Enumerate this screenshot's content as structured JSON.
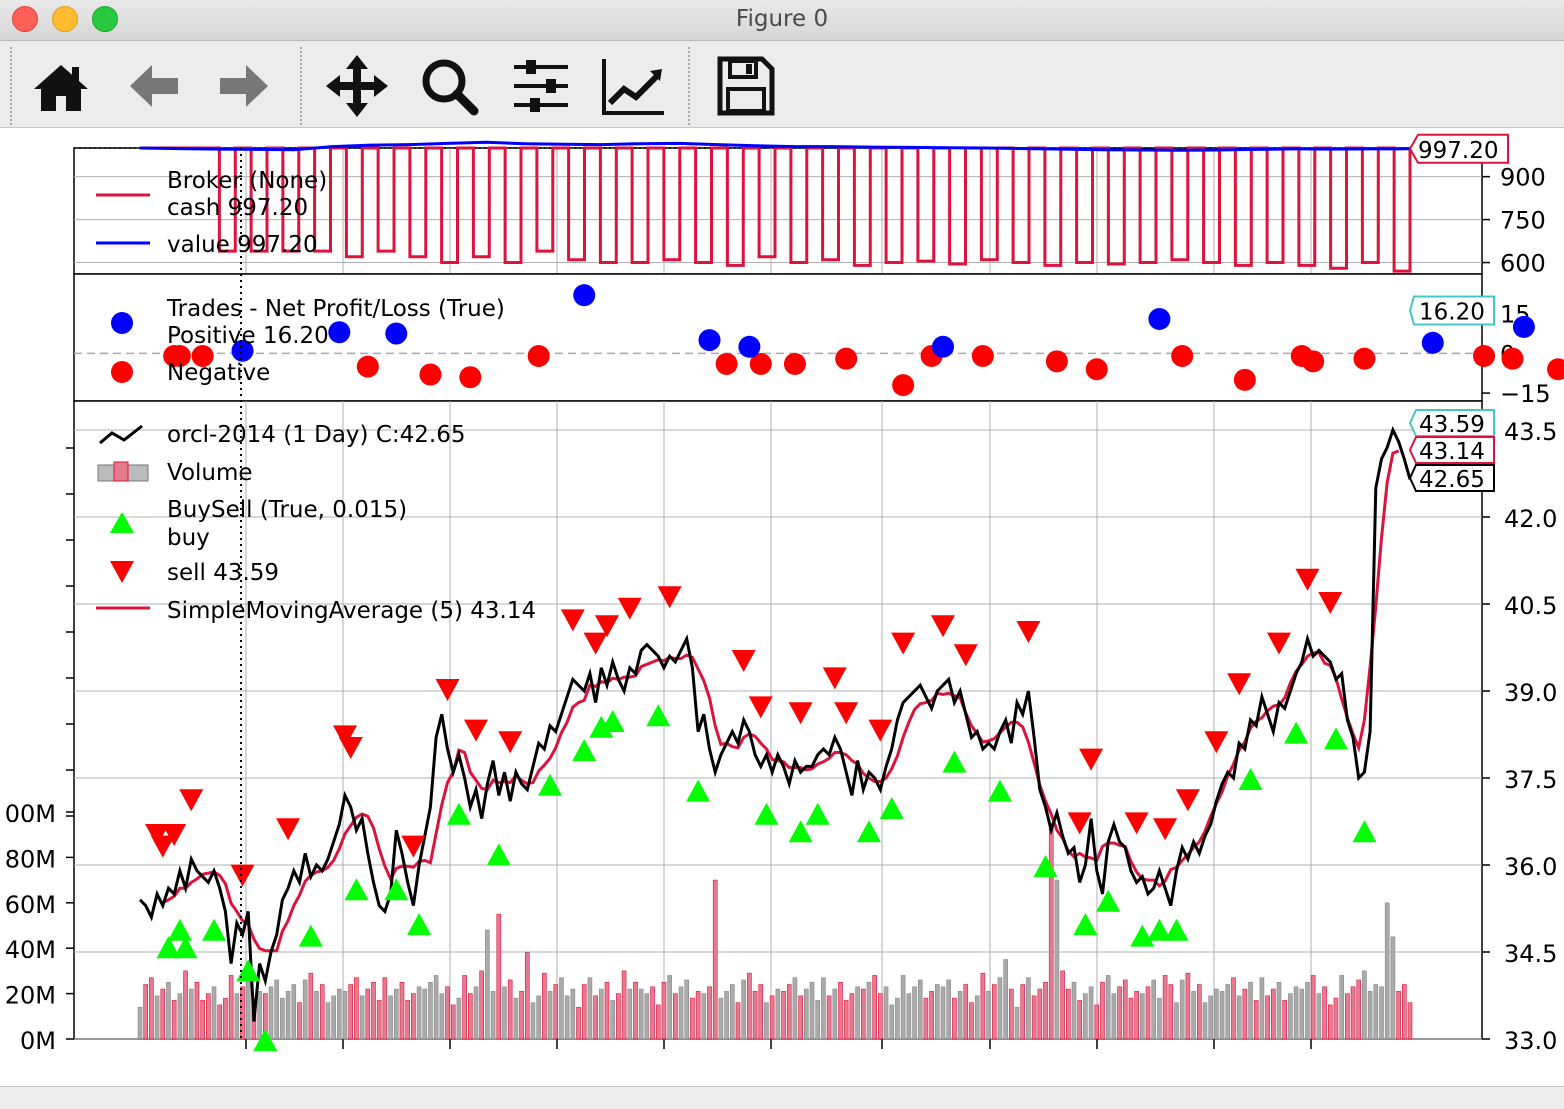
{
  "window": {
    "title": "Figure 0"
  },
  "toolbar": {
    "buttons": [
      {
        "name": "home-button",
        "icon": "home-icon",
        "enabled": true
      },
      {
        "name": "back-button",
        "icon": "arrow-left-icon",
        "enabled": false
      },
      {
        "name": "forward-button",
        "icon": "arrow-right-icon",
        "enabled": false
      },
      {
        "name": "pan-button",
        "icon": "move-icon",
        "enabled": true
      },
      {
        "name": "zoom-button",
        "icon": "magnifier-icon",
        "enabled": true
      },
      {
        "name": "subplots-button",
        "icon": "sliders-icon",
        "enabled": true
      },
      {
        "name": "axes-edit-button",
        "icon": "line-chart-icon",
        "enabled": true
      },
      {
        "name": "save-button",
        "icon": "floppy-disk-icon",
        "enabled": true
      }
    ]
  },
  "colors": {
    "cash": "#dc143c",
    "value": "#0000ff",
    "positive": "#0000ff",
    "negative": "#ff0000",
    "price": "#000000",
    "sma": "#dc143c",
    "buy": "#00ff00",
    "sell": "#ff0000",
    "volume_up": "#aaaaaa",
    "volume_down": "#dc143c"
  },
  "chart_data": [
    {
      "type": "line",
      "panel": "broker",
      "ylim": [
        560,
        1000
      ],
      "yticks": [
        "900",
        "750",
        "600"
      ],
      "ytick_values": [
        900,
        750,
        600
      ],
      "tag_label": "997.20",
      "legend": {
        "title": "Broker (None)",
        "items": [
          "cash 997.20",
          "value 997.20"
        ]
      },
      "series": [
        {
          "name": "cash",
          "description": "oscillates between ~1000 and ~600 with each trade",
          "values": [
            1000,
            1000,
            1000,
            1000,
            1000,
            640,
            1000,
            640,
            1000,
            640,
            1000,
            640,
            1000,
            620,
            1000,
            640,
            1000,
            620,
            1000,
            600,
            1000,
            620,
            1000,
            600,
            1000,
            640,
            1000,
            610,
            1000,
            600,
            1000,
            600,
            1000,
            610,
            1000,
            600,
            1000,
            590,
            1000,
            620,
            1000,
            600,
            1000,
            610,
            1000,
            590,
            1000,
            600,
            1000,
            605,
            1000,
            595,
            1000,
            610,
            1000,
            600,
            1000,
            590,
            1000,
            600,
            1000,
            595,
            1000,
            600,
            1000,
            610,
            1000,
            600,
            1000,
            590,
            1000,
            600,
            1000,
            590,
            1000,
            580,
            1000,
            600,
            1000,
            570,
            997.2
          ]
        },
        {
          "name": "value",
          "description": "flat around 990-1010",
          "values": [
            1000,
            998,
            996,
            995,
            994,
            1005,
            1010,
            1012,
            1016,
            1020,
            1015,
            1013,
            1012,
            1015,
            1016,
            1012,
            1008,
            1005,
            1005,
            1003,
            1002,
            1001,
            1000,
            998,
            996,
            994,
            993,
            992,
            993,
            995,
            997,
            996,
            997,
            997.2
          ]
        }
      ]
    },
    {
      "type": "scatter",
      "panel": "trades",
      "ylim": [
        -18,
        30
      ],
      "yticks": [
        "15",
        "0",
        "−15"
      ],
      "ytick_values": [
        15,
        0,
        -15
      ],
      "tag_label": "16.20",
      "legend": {
        "title": "Trades - Net Profit/Loss (True)",
        "items": [
          "Positive 16.20",
          "Negative"
        ]
      },
      "positive": [
        [
          18,
          1
        ],
        [
          35,
          8
        ],
        [
          45,
          7.5
        ],
        [
          78,
          22
        ],
        [
          100,
          5
        ],
        [
          107,
          2.5
        ],
        [
          141,
          2.5
        ],
        [
          179,
          13
        ],
        [
          227,
          4
        ],
        [
          243,
          10
        ],
        [
          253,
          11
        ],
        [
          269,
          1.5
        ],
        [
          283,
          1.5
        ],
        [
          290,
          16.2
        ]
      ],
      "negative": [
        [
          6,
          -1
        ],
        [
          7,
          -1
        ],
        [
          11,
          -1
        ],
        [
          40,
          -5
        ],
        [
          51,
          -8
        ],
        [
          58,
          -9
        ],
        [
          70,
          -1
        ],
        [
          103,
          -4
        ],
        [
          109,
          -4
        ],
        [
          115,
          -4
        ],
        [
          124,
          -2
        ],
        [
          139,
          -1
        ],
        [
          148,
          -1
        ],
        [
          161,
          -3
        ],
        [
          168,
          -6
        ],
        [
          183,
          -1
        ],
        [
          194,
          -10
        ],
        [
          204,
          -1
        ],
        [
          206,
          -3
        ],
        [
          215,
          -2
        ],
        [
          236,
          -1
        ],
        [
          241,
          -2
        ],
        [
          249,
          -6
        ],
        [
          134,
          -12
        ]
      ]
    },
    {
      "type": "line",
      "panel": "price",
      "ylim": [
        33.0,
        44.0
      ],
      "yticks": [
        "43.5",
        "42.0",
        "40.5",
        "39.0",
        "37.5",
        "36.0",
        "34.5",
        "33.0"
      ],
      "ytick_values": [
        43.5,
        42.0,
        40.5,
        39.0,
        37.5,
        36.0,
        34.5,
        33.0
      ],
      "volume_ticks": [
        "00M",
        "80M",
        "60M",
        "40M",
        "20M",
        "0M"
      ],
      "volume_tick_values": [
        100,
        80,
        60,
        40,
        20,
        0
      ],
      "volume_max": 380,
      "tag_labels": [
        "43.59",
        "43.14",
        "42.65"
      ],
      "legend": {
        "items": [
          "orcl-2014 (1 Day) C:42.65",
          "Volume",
          "BuySell (True, 0.015)",
          "buy",
          "sell 43.59",
          "SimpleMovingAverage (5) 43.14"
        ]
      },
      "close": [
        35.4,
        35.3,
        35.1,
        35.5,
        35.3,
        35.6,
        35.5,
        35.9,
        35.6,
        36.1,
        35.9,
        35.8,
        35.7,
        35.9,
        35.6,
        35.2,
        34.3,
        35.0,
        34.8,
        35.2,
        33.3,
        34.3,
        34.0,
        34.5,
        34.8,
        35.4,
        35.6,
        35.9,
        35.7,
        36.2,
        35.8,
        36.0,
        35.9,
        36.1,
        36.4,
        36.7,
        37.2,
        37.0,
        36.6,
        36.8,
        36.2,
        35.7,
        35.3,
        35.2,
        35.5,
        36.6,
        36.2,
        35.7,
        35.3,
        36.0,
        36.5,
        37.0,
        38.2,
        38.6,
        38.0,
        37.6,
        37.9,
        37.5,
        37.0,
        37.3,
        36.8,
        37.4,
        37.8,
        37.2,
        37.6,
        37.1,
        37.6,
        37.4,
        37.3,
        37.7,
        38.1,
        38.0,
        38.4,
        38.3,
        38.6,
        38.9,
        39.2,
        39.1,
        39.0,
        39.3,
        38.8,
        39.4,
        39.1,
        39.5,
        39.2,
        39.0,
        39.4,
        39.3,
        39.7,
        39.8,
        39.7,
        39.6,
        39.4,
        39.6,
        39.5,
        39.7,
        39.9,
        39.4,
        38.3,
        38.6,
        38.0,
        37.6,
        37.9,
        38.1,
        38.3,
        38.1,
        38.5,
        38.3,
        37.9,
        37.7,
        37.9,
        37.6,
        37.9,
        37.7,
        37.4,
        37.8,
        37.6,
        37.7,
        37.7,
        37.9,
        38.0,
        37.9,
        38.2,
        38.0,
        37.6,
        37.2,
        37.8,
        37.3,
        37.6,
        37.5,
        37.3,
        37.7,
        38.0,
        38.5,
        38.8,
        38.9,
        39.0,
        39.1,
        38.9,
        38.7,
        39.0,
        39.1,
        39.2,
        38.8,
        39.0,
        38.6,
        38.2,
        38.3,
        38.0,
        38.1,
        38.0,
        38.3,
        38.5,
        38.1,
        38.8,
        38.6,
        39.0,
        38.2,
        37.3,
        37.0,
        36.6,
        36.9,
        36.5,
        36.2,
        36.3,
        35.7,
        36.0,
        36.8,
        35.9,
        35.5,
        36.4,
        36.7,
        36.4,
        36.3,
        35.9,
        35.7,
        35.8,
        35.5,
        35.6,
        35.9,
        35.6,
        35.3,
        35.9,
        36.3,
        36.1,
        36.4,
        36.2,
        36.5,
        36.7,
        37.1,
        37.4,
        37.6,
        37.5,
        38.1,
        38.0,
        38.5,
        38.4,
        38.9,
        38.6,
        38.3,
        38.8,
        38.7,
        39.0,
        39.3,
        39.5,
        39.9,
        39.6,
        39.7,
        39.6,
        39.5,
        39.2,
        39.3,
        38.5,
        38.2,
        37.5,
        37.6,
        38.3,
        42.5,
        43.0,
        43.2,
        43.5,
        43.3,
        43.0,
        42.65
      ],
      "sma": [
        null,
        null,
        null,
        null,
        35.35,
        35.4,
        35.46,
        35.6,
        35.6,
        35.7,
        35.76,
        35.84,
        35.86,
        35.88,
        35.82,
        35.68,
        35.34,
        35.2,
        35.04,
        34.98,
        34.72,
        34.56,
        34.52,
        34.52,
        34.52,
        34.86,
        35.04,
        35.3,
        35.48,
        35.72,
        35.82,
        35.88,
        35.9,
        35.96,
        36.08,
        36.28,
        36.54,
        36.68,
        36.82,
        36.88,
        36.84,
        36.64,
        36.28,
        35.98,
        35.76,
        35.94,
        35.98,
        35.98,
        35.96,
        36.06,
        36.08,
        36.04,
        36.54,
        37.04,
        37.42,
        37.6,
        37.98,
        37.94,
        37.6,
        37.46,
        37.32,
        37.3,
        37.46,
        37.42,
        37.44,
        37.42,
        37.54,
        37.46,
        37.4,
        37.42,
        37.62,
        37.72,
        37.84,
        38.02,
        38.28,
        38.46,
        38.72,
        38.8,
        38.84,
        39.1,
        39.08,
        39.16,
        39.14,
        39.22,
        39.2,
        39.24,
        39.24,
        39.26,
        39.42,
        39.46,
        39.5,
        39.54,
        39.52,
        39.58,
        39.56,
        39.56,
        39.62,
        39.58,
        39.38,
        39.18,
        38.88,
        38.4,
        38.08,
        38.1,
        38.04,
        38.02,
        38.2,
        38.26,
        38.22,
        38.1,
        38.0,
        37.82,
        37.8,
        37.78,
        37.68,
        37.68,
        37.68,
        37.64,
        37.66,
        37.74,
        37.78,
        37.84,
        37.94,
        37.94,
        37.9,
        37.8,
        37.74,
        37.58,
        37.5,
        37.44,
        37.44,
        37.5,
        37.66,
        37.88,
        38.2,
        38.46,
        38.68,
        38.78,
        38.8,
        38.84,
        38.96,
        38.94,
        38.96,
        38.92,
        38.88,
        38.62,
        38.4,
        38.26,
        38.12,
        38.14,
        38.18,
        38.28,
        38.38,
        38.46,
        38.46,
        38.38,
        38.12,
        37.76,
        37.38,
        37.1,
        36.88,
        36.6,
        36.46,
        36.24,
        36.14,
        36.2,
        36.14,
        36.12,
        36.08,
        36.32,
        36.38,
        36.38,
        36.34,
        36.32,
        36.06,
        35.88,
        35.76,
        35.74,
        35.74,
        35.64,
        35.72,
        35.92,
        35.96,
        36.08,
        36.18,
        36.3,
        36.4,
        36.58,
        36.84,
        37.06,
        37.26,
        37.54,
        37.74,
        37.98,
        38.12,
        38.36,
        38.48,
        38.54,
        38.66,
        38.74,
        38.76,
        38.88,
        39.14,
        39.34,
        39.46,
        39.6,
        39.66,
        39.66,
        39.48,
        39.44,
        39.22,
        38.86,
        38.54,
        38.26,
        38.02,
        38.5,
        39.42,
        40.46,
        41.64,
        42.6,
        43.1,
        43.14
      ],
      "buy_idx": [
        5,
        7,
        8,
        13,
        19,
        22,
        30,
        38,
        45,
        49,
        56,
        63,
        72,
        78,
        81,
        83,
        91,
        98,
        110,
        116,
        119,
        128,
        132,
        143,
        151,
        159,
        166,
        170,
        176,
        179,
        182,
        195,
        203,
        210,
        215
      ],
      "sell_idx": [
        3,
        4,
        6,
        9,
        18,
        26,
        36,
        37,
        48,
        54,
        59,
        65,
        76,
        80,
        82,
        86,
        93,
        106,
        109,
        116,
        122,
        124,
        130,
        134,
        141,
        145,
        156,
        165,
        167,
        175,
        180,
        184,
        189,
        193,
        200,
        205,
        209
      ],
      "volume_desc": "daily volume in millions, mostly 10-20M with spikes"
    }
  ]
}
